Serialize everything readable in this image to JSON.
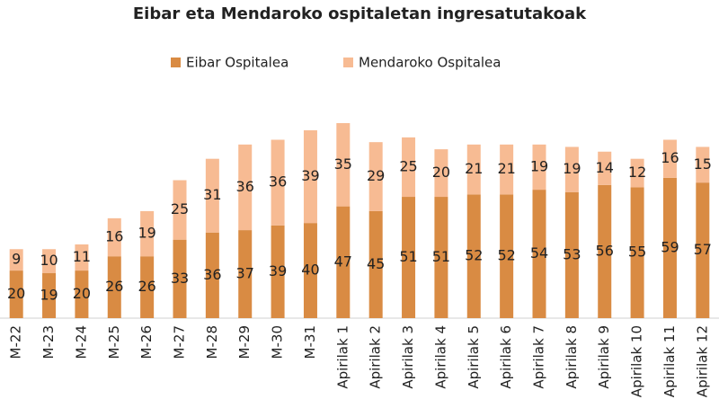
{
  "chart_data": {
    "type": "stacked_bar",
    "title": "Eibar eta Mendaroko ospitaletan ingresatutakoak",
    "categories": [
      "M-22",
      "M-23",
      "M-24",
      "M-25",
      "M-26",
      "M-27",
      "M-28",
      "M-29",
      "M-30",
      "M-31",
      "Apirilak 1",
      "Apirilak 2",
      "Apirilak 3",
      "Apirilak 4",
      "Apirilak 5",
      "Apirilak 6",
      "Apirilak 7",
      "Apirilak 8",
      "Apirilak 9",
      "Apirilak 10",
      "Apirilak 11",
      "Apirilak 12"
    ],
    "series": [
      {
        "name": "Eibar Ospitalea",
        "color": "#d98b43",
        "values": [
          20,
          19,
          20,
          26,
          26,
          33,
          36,
          37,
          39,
          40,
          47,
          45,
          51,
          51,
          52,
          52,
          54,
          53,
          56,
          55,
          59,
          57
        ]
      },
      {
        "name": "Mendaroko Ospitalea",
        "color": "#f7bb93",
        "values": [
          9,
          10,
          11,
          16,
          19,
          25,
          31,
          36,
          36,
          39,
          35,
          29,
          25,
          20,
          21,
          21,
          19,
          19,
          14,
          12,
          16,
          15
        ]
      }
    ],
    "legend": "top"
  }
}
